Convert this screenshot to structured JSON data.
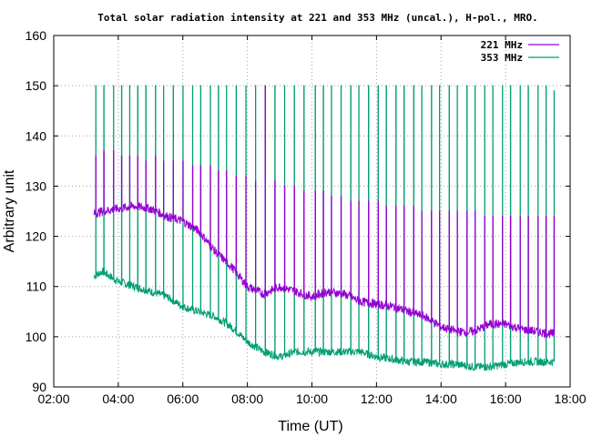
{
  "chart_data": {
    "type": "line",
    "title": "Total solar radiation intensity at 221 and 353 MHz (uncal.), H-pol., MRO.",
    "xlabel": "Time (UT)",
    "ylabel": "Arbitrary unit",
    "xlim": [
      2,
      18
    ],
    "ylim": [
      90,
      160
    ],
    "x_ticks": [
      "02:00",
      "04:00",
      "06:00",
      "08:00",
      "10:00",
      "12:00",
      "14:00",
      "16:00",
      "18:00"
    ],
    "y_ticks": [
      "90",
      "100",
      "110",
      "120",
      "130",
      "140",
      "150",
      "160"
    ],
    "grid": true,
    "legend_position": "top-right",
    "series": [
      {
        "name": "221 MHz",
        "color": "#9400d3",
        "baseline": {
          "x": [
            3.25,
            3.5,
            4.0,
            4.5,
            5.0,
            5.5,
            6.0,
            6.5,
            7.0,
            7.5,
            8.0,
            8.5,
            9.0,
            9.5,
            10.0,
            10.5,
            11.0,
            11.5,
            12.0,
            12.5,
            13.0,
            13.5,
            14.0,
            14.5,
            15.0,
            15.5,
            16.0,
            16.5,
            17.0,
            17.5
          ],
          "y": [
            124.5,
            125,
            125.5,
            126,
            125.5,
            124,
            123,
            121,
            117,
            114,
            110,
            108.5,
            110,
            109,
            108,
            109,
            108.5,
            107,
            106.5,
            106,
            105,
            104,
            102,
            101,
            101,
            102.5,
            102.5,
            101.5,
            101,
            100.5
          ]
        },
        "spikes": {
          "x": [
            3.3,
            3.55,
            3.85,
            4.1,
            4.35,
            4.6,
            4.85,
            5.15,
            5.4,
            5.7,
            6.0,
            6.3,
            6.55,
            6.85,
            7.1,
            7.35,
            7.65,
            7.95,
            8.25,
            8.55,
            8.85,
            9.15,
            9.45,
            9.75,
            10.1,
            10.35,
            10.6,
            10.9,
            11.2,
            11.45,
            11.75,
            12.05,
            12.3,
            12.6,
            12.85,
            13.15,
            13.4,
            13.7,
            13.95,
            14.25,
            14.5,
            14.8,
            15.05,
            15.35,
            15.6,
            15.9,
            16.15,
            16.45,
            16.7,
            17.0,
            17.25,
            17.5
          ],
          "y": [
            136,
            137,
            137,
            136,
            136,
            136,
            135,
            136,
            135,
            135,
            135,
            134,
            134,
            134,
            133,
            133,
            132,
            132,
            131,
            150,
            131,
            130,
            130,
            129,
            129,
            129,
            128,
            128,
            127,
            127,
            127,
            127,
            126,
            126,
            126,
            126,
            125,
            125,
            125,
            125,
            125,
            125,
            125,
            124,
            124,
            124,
            124,
            124,
            124,
            124,
            124,
            124
          ]
        }
      },
      {
        "name": "353 MHz",
        "color": "#009e73",
        "baseline": {
          "x": [
            3.25,
            3.5,
            4.0,
            4.5,
            5.0,
            5.5,
            6.0,
            6.5,
            7.0,
            7.5,
            8.0,
            8.5,
            9.0,
            9.5,
            10.0,
            10.5,
            11.0,
            11.5,
            12.0,
            12.5,
            13.0,
            13.5,
            14.0,
            14.5,
            15.0,
            15.5,
            16.0,
            16.5,
            17.0,
            17.5
          ],
          "y": [
            112,
            113,
            111,
            110,
            109,
            108,
            106,
            105,
            104,
            102,
            99,
            97,
            96,
            97,
            97,
            97,
            97,
            97,
            96,
            95.5,
            95,
            95,
            94.5,
            94.5,
            94,
            94,
            94.5,
            95,
            95,
            95
          ]
        },
        "spikes": {
          "x": [
            3.3,
            3.55,
            3.85,
            4.1,
            4.35,
            4.6,
            4.85,
            5.15,
            5.4,
            5.7,
            6.0,
            6.3,
            6.55,
            6.85,
            7.1,
            7.35,
            7.65,
            7.95,
            8.25,
            8.55,
            8.85,
            9.15,
            9.45,
            9.75,
            10.1,
            10.35,
            10.6,
            10.9,
            11.2,
            11.45,
            11.75,
            12.05,
            12.3,
            12.6,
            12.85,
            13.15,
            13.4,
            13.7,
            13.95,
            14.25,
            14.5,
            14.8,
            15.05,
            15.35,
            15.6,
            15.9,
            16.15,
            16.45,
            16.7,
            17.0,
            17.25,
            17.5
          ],
          "y": [
            150,
            150,
            150,
            150,
            150,
            150,
            150,
            150,
            150,
            150,
            150,
            150,
            150,
            150,
            150,
            150,
            150,
            150,
            150,
            150,
            150,
            150,
            150,
            150,
            150,
            150,
            150,
            150,
            150,
            150,
            150,
            150,
            150,
            150,
            150,
            150,
            150,
            150,
            150,
            150,
            150,
            150,
            150,
            150,
            150,
            150,
            150,
            150,
            150,
            150,
            150,
            149
          ]
        }
      }
    ]
  }
}
